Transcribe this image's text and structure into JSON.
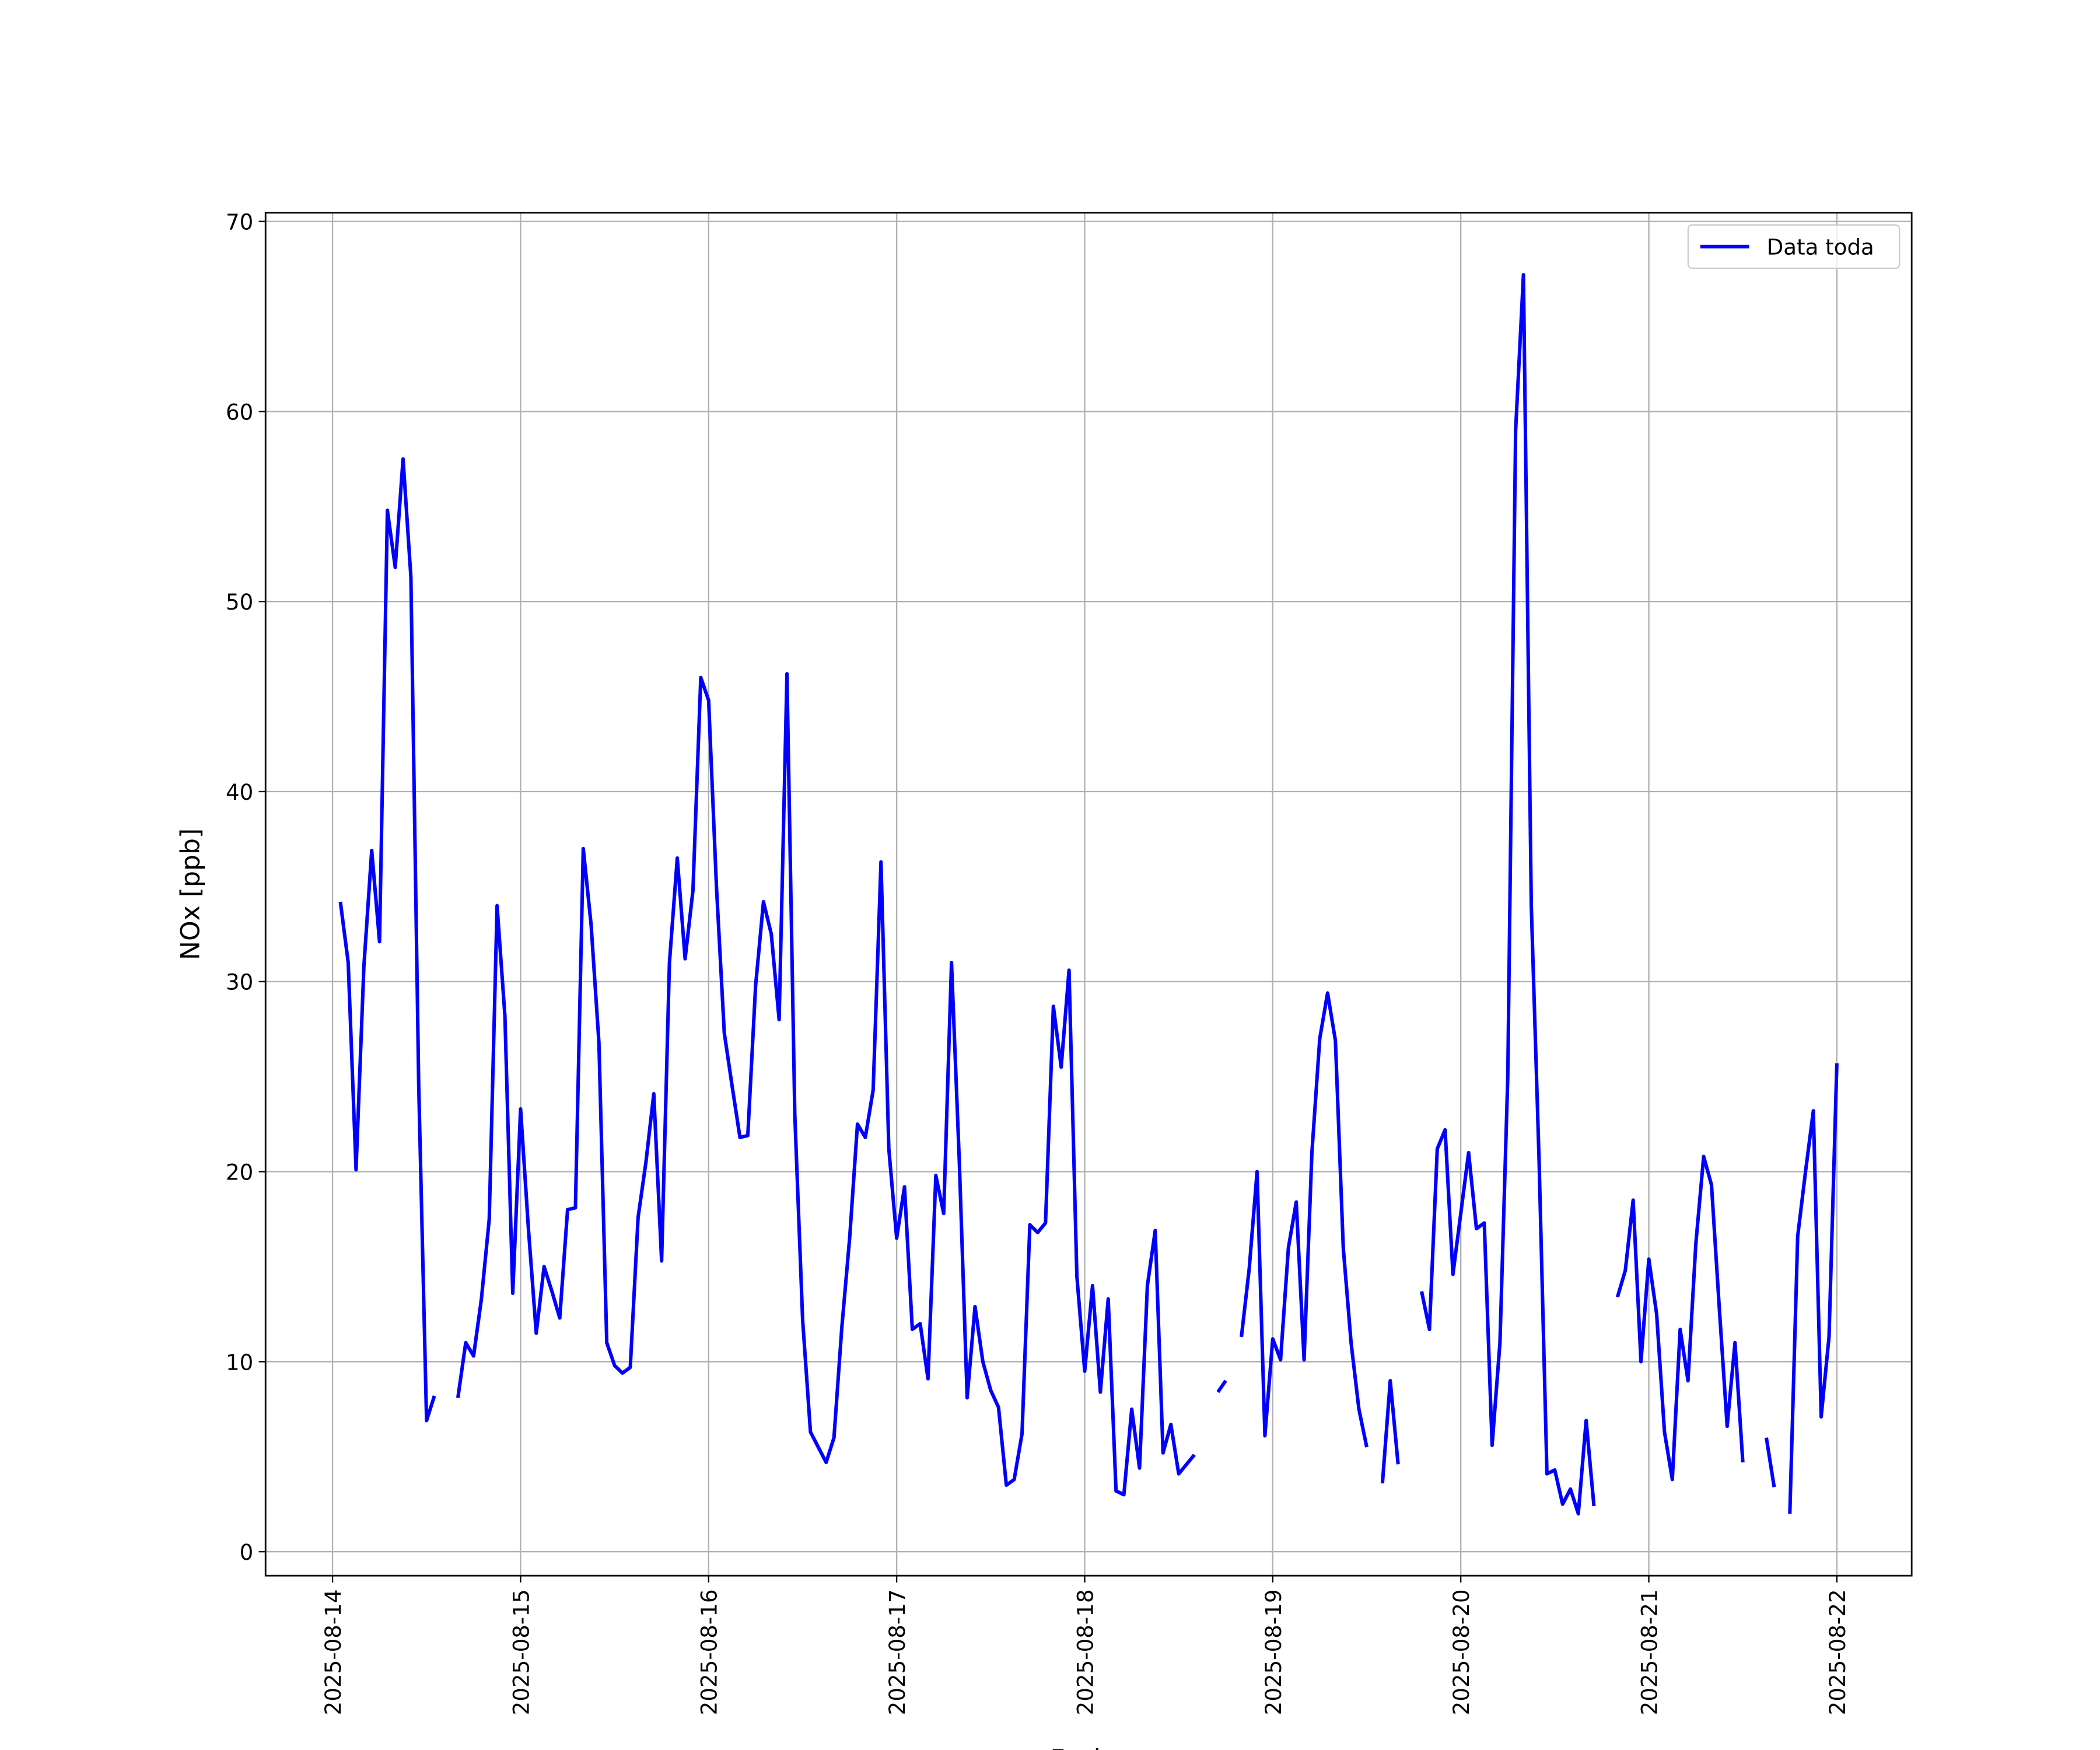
{
  "chart_data": {
    "type": "line",
    "xlabel": "Fecha",
    "ylabel": "NOx [ppb]",
    "x": [
      "2025-08-14 01:00",
      "2025-08-14 02:00",
      "2025-08-14 03:00",
      "2025-08-14 04:00",
      "2025-08-14 05:00",
      "2025-08-14 06:00",
      "2025-08-14 07:00",
      "2025-08-14 08:00",
      "2025-08-14 09:00",
      "2025-08-14 10:00",
      "2025-08-14 11:00",
      "2025-08-14 12:00",
      "2025-08-14 13:00",
      "2025-08-14 14:00",
      "2025-08-14 15:00",
      "2025-08-14 16:00",
      "2025-08-14 17:00",
      "2025-08-14 18:00",
      "2025-08-14 19:00",
      "2025-08-14 20:00",
      "2025-08-14 21:00",
      "2025-08-14 22:00",
      "2025-08-14 23:00",
      "2025-08-15 00:00",
      "2025-08-15 01:00",
      "2025-08-15 02:00",
      "2025-08-15 03:00",
      "2025-08-15 04:00",
      "2025-08-15 05:00",
      "2025-08-15 06:00",
      "2025-08-15 07:00",
      "2025-08-15 08:00",
      "2025-08-15 09:00",
      "2025-08-15 10:00",
      "2025-08-15 11:00",
      "2025-08-15 12:00",
      "2025-08-15 13:00",
      "2025-08-15 14:00",
      "2025-08-15 15:00",
      "2025-08-15 16:00",
      "2025-08-15 17:00",
      "2025-08-15 18:00",
      "2025-08-15 19:00",
      "2025-08-15 20:00",
      "2025-08-15 21:00",
      "2025-08-15 22:00",
      "2025-08-15 23:00",
      "2025-08-16 00:00",
      "2025-08-16 01:00",
      "2025-08-16 02:00",
      "2025-08-16 03:00",
      "2025-08-16 04:00",
      "2025-08-16 05:00",
      "2025-08-16 06:00",
      "2025-08-16 07:00",
      "2025-08-16 08:00",
      "2025-08-16 09:00",
      "2025-08-16 10:00",
      "2025-08-16 11:00",
      "2025-08-16 12:00",
      "2025-08-16 13:00",
      "2025-08-16 14:00",
      "2025-08-16 15:00",
      "2025-08-16 16:00",
      "2025-08-16 17:00",
      "2025-08-16 18:00",
      "2025-08-16 19:00",
      "2025-08-16 20:00",
      "2025-08-16 21:00",
      "2025-08-16 22:00",
      "2025-08-16 23:00",
      "2025-08-17 00:00",
      "2025-08-17 01:00",
      "2025-08-17 02:00",
      "2025-08-17 03:00",
      "2025-08-17 04:00",
      "2025-08-17 05:00",
      "2025-08-17 06:00",
      "2025-08-17 07:00",
      "2025-08-17 08:00",
      "2025-08-17 09:00",
      "2025-08-17 10:00",
      "2025-08-17 11:00",
      "2025-08-17 12:00",
      "2025-08-17 13:00",
      "2025-08-17 14:00",
      "2025-08-17 15:00",
      "2025-08-17 16:00",
      "2025-08-17 17:00",
      "2025-08-17 18:00",
      "2025-08-17 19:00",
      "2025-08-17 20:00",
      "2025-08-17 21:00",
      "2025-08-17 22:00",
      "2025-08-17 23:00",
      "2025-08-18 00:00",
      "2025-08-18 01:00",
      "2025-08-18 02:00",
      "2025-08-18 03:00",
      "2025-08-18 04:00",
      "2025-08-18 05:00",
      "2025-08-18 06:00",
      "2025-08-18 07:00",
      "2025-08-18 08:00",
      "2025-08-18 09:00",
      "2025-08-18 10:00",
      "2025-08-18 11:00",
      "2025-08-18 12:00",
      "2025-08-18 13:00",
      "2025-08-18 14:00",
      "2025-08-18 15:00",
      "2025-08-18 16:00",
      "2025-08-18 17:00",
      "2025-08-18 18:00",
      "2025-08-18 19:00",
      "2025-08-18 20:00",
      "2025-08-18 21:00",
      "2025-08-18 22:00",
      "2025-08-18 23:00",
      "2025-08-19 00:00",
      "2025-08-19 01:00",
      "2025-08-19 02:00",
      "2025-08-19 03:00",
      "2025-08-19 04:00",
      "2025-08-19 05:00",
      "2025-08-19 06:00",
      "2025-08-19 07:00",
      "2025-08-19 08:00",
      "2025-08-19 09:00",
      "2025-08-19 10:00",
      "2025-08-19 11:00",
      "2025-08-19 12:00",
      "2025-08-19 13:00",
      "2025-08-19 14:00",
      "2025-08-19 15:00",
      "2025-08-19 16:00",
      "2025-08-19 17:00",
      "2025-08-19 18:00",
      "2025-08-19 19:00",
      "2025-08-19 20:00",
      "2025-08-19 21:00",
      "2025-08-19 22:00",
      "2025-08-19 23:00",
      "2025-08-20 00:00",
      "2025-08-20 01:00",
      "2025-08-20 02:00",
      "2025-08-20 03:00",
      "2025-08-20 04:00",
      "2025-08-20 05:00",
      "2025-08-20 06:00",
      "2025-08-20 07:00",
      "2025-08-20 08:00",
      "2025-08-20 09:00",
      "2025-08-20 10:00",
      "2025-08-20 11:00",
      "2025-08-20 12:00",
      "2025-08-20 13:00",
      "2025-08-20 14:00",
      "2025-08-20 15:00",
      "2025-08-20 16:00",
      "2025-08-20 17:00",
      "2025-08-20 18:00",
      "2025-08-20 19:00",
      "2025-08-20 20:00",
      "2025-08-20 21:00",
      "2025-08-20 22:00",
      "2025-08-20 23:00",
      "2025-08-21 00:00",
      "2025-08-21 01:00",
      "2025-08-21 02:00",
      "2025-08-21 03:00",
      "2025-08-21 04:00",
      "2025-08-21 05:00",
      "2025-08-21 06:00",
      "2025-08-21 07:00",
      "2025-08-21 08:00",
      "2025-08-21 09:00",
      "2025-08-21 10:00",
      "2025-08-21 11:00",
      "2025-08-21 12:00",
      "2025-08-21 13:00",
      "2025-08-21 14:00",
      "2025-08-21 15:00",
      "2025-08-21 16:00",
      "2025-08-21 17:00",
      "2025-08-21 18:00",
      "2025-08-21 19:00",
      "2025-08-21 20:00",
      "2025-08-21 21:00",
      "2025-08-21 22:00",
      "2025-08-21 23:00",
      "2025-08-22 00:00"
    ],
    "series": [
      {
        "name": "Data toda",
        "color": "#0000ff",
        "values": [
          34.2,
          31.0,
          20.1,
          30.8,
          36.9,
          32.1,
          54.8,
          51.8,
          57.5,
          51.3,
          24.5,
          6.9,
          8.2,
          null,
          null,
          8.1,
          11.0,
          10.3,
          13.3,
          17.5,
          34.0,
          28.2,
          13.6,
          23.3,
          17.0,
          11.5,
          15.0,
          13.7,
          12.3,
          18.0,
          18.1,
          37.0,
          33.0,
          26.8,
          11.0,
          9.8,
          9.4,
          9.7,
          17.6,
          20.5,
          24.1,
          15.3,
          31.0,
          36.5,
          31.2,
          34.8,
          46.0,
          44.8,
          35.0,
          27.3,
          24.5,
          21.8,
          21.9,
          29.8,
          34.2,
          32.5,
          28.0,
          46.2,
          23.0,
          12.2,
          6.3,
          5.5,
          4.7,
          6.0,
          11.8,
          16.5,
          22.5,
          21.8,
          24.3,
          36.3,
          21.2,
          16.5,
          19.2,
          11.7,
          12.0,
          9.1,
          19.8,
          17.8,
          31.0,
          20.5,
          8.1,
          12.9,
          10.0,
          8.5,
          7.6,
          3.5,
          3.8,
          6.2,
          17.2,
          16.8,
          17.3,
          28.7,
          25.5,
          30.6,
          14.5,
          9.5,
          14.0,
          8.4,
          13.3,
          3.2,
          3.0,
          7.5,
          4.4,
          14.0,
          16.9,
          5.2,
          6.7,
          4.1,
          4.6,
          5.1,
          null,
          null,
          8.4,
          9.0,
          null,
          11.3,
          14.9,
          20.0,
          6.1,
          11.2,
          10.1,
          16.0,
          18.4,
          10.1,
          21.0,
          27.0,
          29.4,
          26.9,
          16.0,
          11.0,
          7.5,
          5.5,
          null,
          3.6,
          9.0,
          4.6,
          null,
          null,
          13.7,
          11.7,
          21.2,
          22.2,
          14.6,
          17.8,
          21.0,
          17.0,
          17.3,
          5.6,
          11.0,
          25.0,
          59.0,
          67.2,
          34.0,
          20.5,
          4.1,
          4.3,
          2.5,
          3.3,
          2.0,
          6.9,
          2.4,
          null,
          null,
          13.4,
          14.8,
          18.5,
          10.0,
          15.4,
          12.5,
          6.3,
          3.8,
          11.7,
          9.0,
          16.2,
          20.8,
          19.3,
          12.8,
          6.6,
          11.0,
          4.7,
          null,
          null,
          6.0,
          3.4,
          null,
          2.0,
          16.6,
          20.0,
          23.2,
          7.1,
          11.3,
          25.7
        ]
      }
    ],
    "xlim": [
      "2025-08-13 15:27",
      "2025-08-22 09:33"
    ],
    "xticks": [
      "2025-08-14",
      "2025-08-15",
      "2025-08-16",
      "2025-08-17",
      "2025-08-18",
      "2025-08-19",
      "2025-08-20",
      "2025-08-21",
      "2025-08-22"
    ],
    "ylim": [
      -1.26,
      70.46
    ],
    "yticks": [
      0,
      10,
      20,
      30,
      40,
      50,
      60,
      70
    ],
    "grid": true,
    "legend": "upper right"
  }
}
